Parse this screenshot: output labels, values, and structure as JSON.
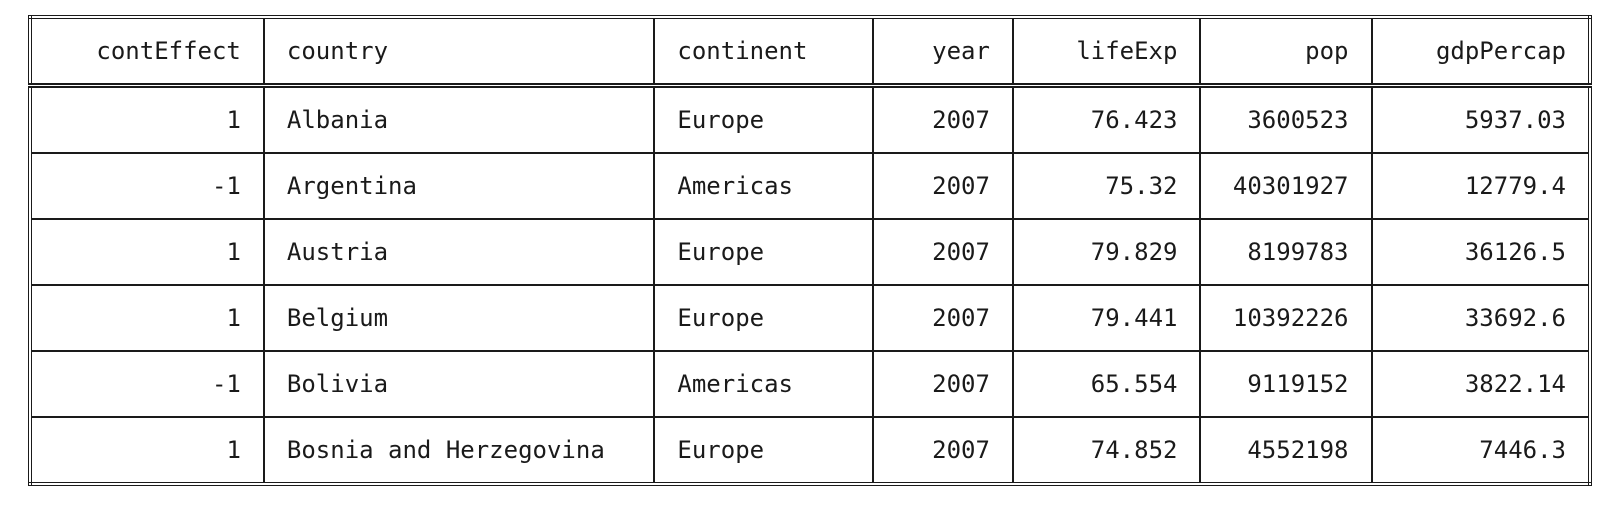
{
  "table": {
    "columns": [
      {
        "label": "contEffect",
        "align": "num"
      },
      {
        "label": "country",
        "align": "txt"
      },
      {
        "label": "continent",
        "align": "txt"
      },
      {
        "label": "year",
        "align": "num"
      },
      {
        "label": "lifeExp",
        "align": "num"
      },
      {
        "label": "pop",
        "align": "num"
      },
      {
        "label": "gdpPercap",
        "align": "num"
      }
    ],
    "rows": [
      [
        "1",
        "Albania",
        "Europe",
        "2007",
        "76.423",
        "3600523",
        "5937.03"
      ],
      [
        "-1",
        "Argentina",
        "Americas",
        "2007",
        "75.32 ",
        "40301927",
        "12779.4 "
      ],
      [
        "1",
        "Austria",
        "Europe",
        "2007",
        "79.829",
        "8199783",
        "36126.5 "
      ],
      [
        "1",
        "Belgium",
        "Europe",
        "2007",
        "79.441",
        "10392226",
        "33692.6 "
      ],
      [
        "-1",
        "Bolivia",
        "Americas",
        "2007",
        "65.554",
        "9119152",
        "3822.14"
      ],
      [
        "1",
        "Bosnia and Herzegovina",
        "Europe",
        "2007",
        "74.852",
        "4552198",
        "7446.3 "
      ]
    ]
  }
}
